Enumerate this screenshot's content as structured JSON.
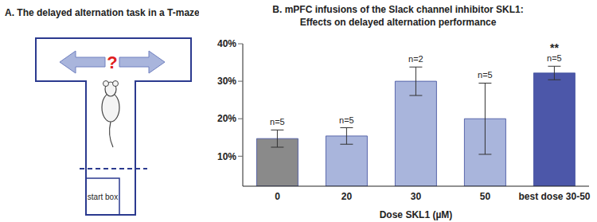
{
  "panel_a": {
    "title": "A. The delayed alternation task in a T-maze",
    "question_mark": "?",
    "start_box": "start box"
  },
  "chart_data": {
    "type": "bar",
    "title": "B. mPFC infusions of the Slack channel inhibitor SKL1:",
    "subtitle": "Effects on delayed alternation performance",
    "x_label": "Dose SKL1 (µM)",
    "categories": [
      "0",
      "20",
      "30",
      "50",
      "best dose 30-50"
    ],
    "values": [
      14.7,
      15.4,
      30,
      20,
      32.2
    ],
    "errors": [
      2.3,
      2.2,
      3.8,
      9.5,
      1.8
    ],
    "n_labels": [
      "n=5",
      "n=5",
      "n=2",
      "n=5",
      "n=5"
    ],
    "annotations": [
      {
        "category": "best dose 30-50",
        "text": "**"
      }
    ],
    "colors": [
      "#8a8a8a",
      "#a9b5dc",
      "#a9b5dc",
      "#a9b5dc",
      "#4c57a9"
    ],
    "ylim": [
      2,
      40
    ],
    "yticks": [
      {
        "value": 10,
        "label": "10%"
      },
      {
        "value": 20,
        "label": "20%"
      },
      {
        "value": 30,
        "label": "30%"
      },
      {
        "value": 40,
        "label": "40%"
      }
    ],
    "grid": false
  }
}
